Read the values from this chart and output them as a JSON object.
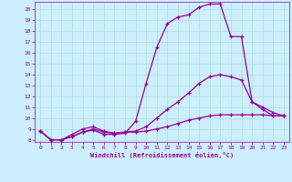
{
  "xlabel": "Windchill (Refroidissement éolien,°C)",
  "background_color": "#cceeff",
  "grid_color": "#b0ddcc",
  "line_color": "#990099",
  "xlim": [
    -0.5,
    23.5
  ],
  "ylim": [
    7.8,
    20.7
  ],
  "xticks": [
    0,
    1,
    2,
    3,
    4,
    5,
    6,
    7,
    8,
    9,
    10,
    11,
    12,
    13,
    14,
    15,
    16,
    17,
    18,
    19,
    20,
    21,
    22,
    23
  ],
  "yticks": [
    8,
    9,
    10,
    11,
    12,
    13,
    14,
    15,
    16,
    17,
    18,
    19,
    20
  ],
  "series1_x": [
    0,
    1,
    2,
    3,
    4,
    5,
    6,
    7,
    8,
    9,
    10,
    11,
    12,
    13,
    14,
    15,
    16,
    17,
    18,
    19,
    20,
    21,
    22,
    23
  ],
  "series1_y": [
    8.8,
    8.0,
    8.0,
    8.3,
    8.7,
    8.9,
    8.5,
    8.5,
    8.6,
    9.7,
    13.2,
    16.5,
    18.7,
    19.3,
    19.5,
    20.2,
    20.5,
    20.5,
    17.5,
    17.5,
    11.5,
    10.8,
    10.2,
    10.2
  ],
  "series2_x": [
    0,
    1,
    2,
    3,
    4,
    5,
    6,
    7,
    8,
    9,
    10,
    11,
    12,
    13,
    14,
    15,
    16,
    17,
    18,
    19,
    20,
    21,
    22,
    23
  ],
  "series2_y": [
    8.8,
    8.0,
    8.0,
    8.5,
    9.0,
    9.2,
    8.8,
    8.6,
    8.7,
    8.8,
    9.2,
    10.0,
    10.8,
    11.5,
    12.3,
    13.2,
    13.8,
    14.0,
    13.8,
    13.5,
    11.5,
    11.0,
    10.5,
    10.2
  ],
  "series3_x": [
    0,
    1,
    2,
    3,
    4,
    5,
    6,
    7,
    8,
    9,
    10,
    11,
    12,
    13,
    14,
    15,
    16,
    17,
    18,
    19,
    20,
    21,
    22,
    23
  ],
  "series3_y": [
    8.8,
    8.0,
    8.0,
    8.3,
    8.7,
    9.0,
    8.7,
    8.6,
    8.7,
    8.7,
    8.8,
    9.0,
    9.2,
    9.5,
    9.8,
    10.0,
    10.2,
    10.3,
    10.3,
    10.3,
    10.3,
    10.3,
    10.2,
    10.2
  ]
}
